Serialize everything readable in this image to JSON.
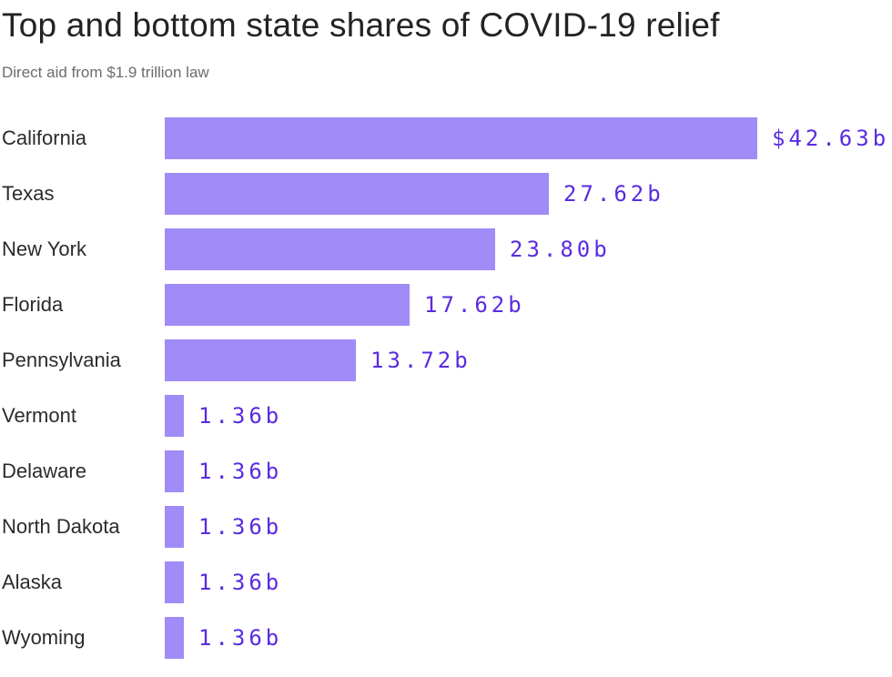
{
  "header": {
    "title": "Top and bottom state shares of COVID-19 relief",
    "subtitle": "Direct aid from $1.9 trillion law"
  },
  "colors": {
    "bar_fill": "#a18bf7",
    "value_text": "#5a2be0",
    "title_text": "#232327",
    "subtitle_text": "#6b6b72",
    "label_text": "#2b2b2f"
  },
  "chart_data": {
    "type": "bar",
    "orientation": "horizontal",
    "title": "Top and bottom state shares of COVID-19 relief",
    "subtitle": "Direct aid from $1.9 trillion law",
    "xlabel": "",
    "ylabel": "",
    "unit": "billions USD",
    "xlim": [
      0,
      42.63
    ],
    "grid": false,
    "legend": null,
    "categories": [
      "California",
      "Texas",
      "New York",
      "Florida",
      "Pennsylvania",
      "Vermont",
      "Delaware",
      "North Dakota",
      "Alaska",
      "Wyoming"
    ],
    "values": [
      42.63,
      27.62,
      23.8,
      17.62,
      13.72,
      1.36,
      1.36,
      1.36,
      1.36,
      1.36
    ],
    "value_labels": [
      "$42.63b",
      "27.62b",
      "23.80b",
      "17.62b",
      "13.72b",
      "1.36b",
      "1.36b",
      "1.36b",
      "1.36b",
      "1.36b"
    ]
  }
}
